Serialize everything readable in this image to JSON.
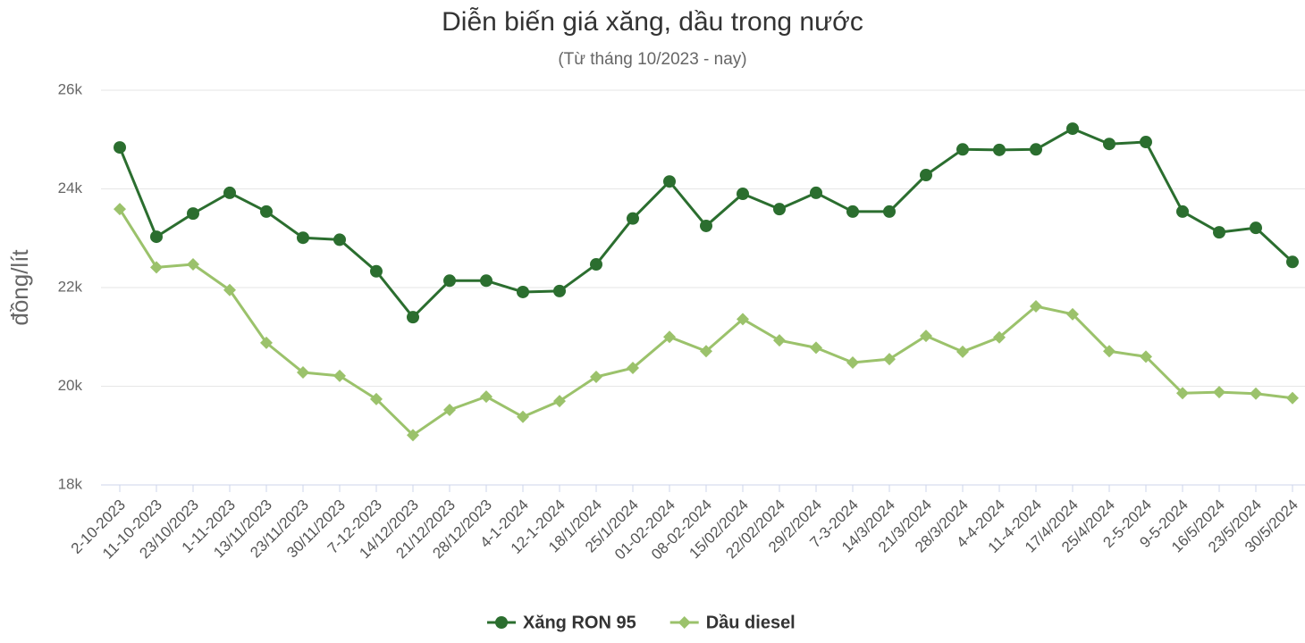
{
  "chart_data": {
    "type": "line",
    "title": "Diễn biến giá xăng, dầu trong nước",
    "subtitle": "(Từ tháng 10/2023 - nay)",
    "y_label": "đồng/lít",
    "categories": [
      "2-10-2023",
      "11-10-2023",
      "23/10/2023",
      "1-11-2023",
      "13/11/2023",
      "23/11/2023",
      "30/11/2023",
      "7-12-2023",
      "14/12/2023",
      "21/12/2023",
      "28/12/2023",
      "4-1-2024",
      "12-1-2024",
      "18/1/2024",
      "25/1/2024",
      "01-02-2024",
      "08-02-2024",
      "15/02/2024",
      "22/02/2024",
      "29/2/2024",
      "7-3-2024",
      "14/3/2024",
      "21/3/2024",
      "28/3/2024",
      "4-4-2024",
      "11-4-2024",
      "17/4/2024",
      "25/4/2024",
      "2-5-2024",
      "9-5-2024",
      "16/5/2024",
      "23/5/2024",
      "30/5/2024"
    ],
    "series": [
      {
        "name": "Xăng RON 95",
        "color": "#2b6e2f",
        "marker": "circle",
        "values": [
          24840,
          23030,
          23500,
          23920,
          23540,
          23010,
          22970,
          22330,
          21400,
          22140,
          22140,
          21910,
          21930,
          22470,
          23400,
          24150,
          23250,
          23900,
          23590,
          23920,
          23540,
          23540,
          24280,
          24800,
          24790,
          24800,
          25220,
          24910,
          24950,
          23540,
          23120,
          23210,
          22520
        ]
      },
      {
        "name": "Dầu diesel",
        "color": "#9bc26b",
        "marker": "diamond",
        "values": [
          23590,
          22410,
          22470,
          21950,
          20880,
          20280,
          20210,
          19740,
          19010,
          19520,
          19790,
          19380,
          19700,
          20190,
          20370,
          21000,
          20710,
          21360,
          20930,
          20780,
          20480,
          20550,
          21020,
          20700,
          20990,
          21620,
          21460,
          20710,
          20600,
          19860,
          19880,
          19850,
          19760
        ]
      }
    ],
    "ylim": [
      18000,
      26000
    ],
    "yticks": [
      {
        "value": 18000,
        "label": "18k"
      },
      {
        "value": 20000,
        "label": "20k"
      },
      {
        "value": 22000,
        "label": "22k"
      },
      {
        "value": 24000,
        "label": "24k"
      },
      {
        "value": 26000,
        "label": "26k"
      }
    ],
    "grid": true,
    "legend": "bottom"
  }
}
